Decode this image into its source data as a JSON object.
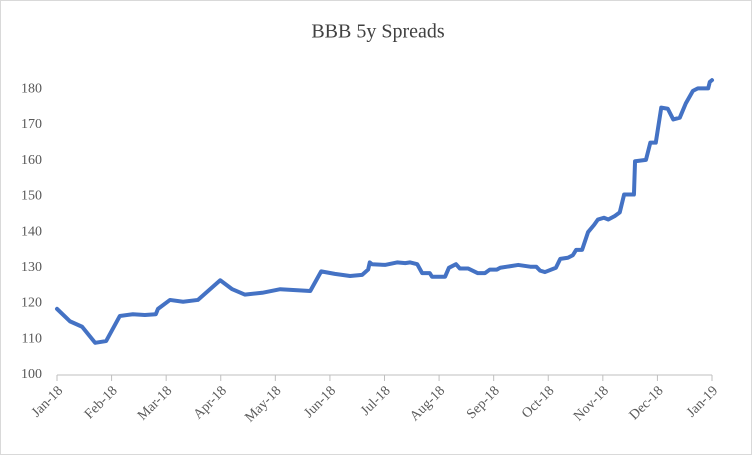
{
  "chart_data": {
    "type": "line",
    "title": "BBB 5y Spreads",
    "xlim": [
      0,
      12
    ],
    "xticks": [
      {
        "value": 0,
        "label": "Jan-18"
      },
      {
        "value": 1,
        "label": "Feb-18"
      },
      {
        "value": 2,
        "label": "Mar-18"
      },
      {
        "value": 3,
        "label": "Apr-18"
      },
      {
        "value": 4,
        "label": "May-18"
      },
      {
        "value": 5,
        "label": "Jun-18"
      },
      {
        "value": 6,
        "label": "Jul-18"
      },
      {
        "value": 7,
        "label": "Aug-18"
      },
      {
        "value": 8,
        "label": "Sep-18"
      },
      {
        "value": 9,
        "label": "Oct-18"
      },
      {
        "value": 10,
        "label": "Nov-18"
      },
      {
        "value": 11,
        "label": "Dec-18"
      },
      {
        "value": 12,
        "label": "Jan-19"
      }
    ],
    "ylim": [
      100,
      185
    ],
    "yticks": [
      100,
      110,
      120,
      130,
      140,
      150,
      160,
      170,
      180
    ],
    "grid": false,
    "series": [
      {
        "color": "#4472c4",
        "x": [
          0,
          0.24,
          0.46,
          0.7,
          0.9,
          1.15,
          1.39,
          1.61,
          1.81,
          1.85,
          2.07,
          2.31,
          2.58,
          2.99,
          3.21,
          3.44,
          3.76,
          4.09,
          4.64,
          4.84,
          5.09,
          5.37,
          5.59,
          5.7,
          5.73,
          5.77,
          6.01,
          6.23,
          6.38,
          6.47,
          6.6,
          6.69,
          6.83,
          6.87,
          7.11,
          7.18,
          7.31,
          7.38,
          7.53,
          7.71,
          7.84,
          7.93,
          8.06,
          8.12,
          8.45,
          8.67,
          8.78,
          8.85,
          8.94,
          9.14,
          9.22,
          9.36,
          9.45,
          9.51,
          9.62,
          9.73,
          9.84,
          9.91,
          10.02,
          10.1,
          10.22,
          10.31,
          10.39,
          10.57,
          10.59,
          10.79,
          10.87,
          10.97,
          11.07,
          11.19,
          11.29,
          11.41,
          11.52,
          11.65,
          11.74,
          11.93,
          11.96,
          12
        ],
        "values": [
          118.5,
          115,
          113.5,
          109,
          109.5,
          116.5,
          117,
          116.8,
          117,
          118.5,
          121,
          120.5,
          121,
          126.5,
          124,
          122.5,
          123,
          124,
          123.5,
          129,
          128.3,
          127.7,
          128,
          129.5,
          131.5,
          131,
          130.8,
          131.5,
          131.3,
          131.5,
          131,
          128.5,
          128.5,
          127.5,
          127.5,
          130,
          131,
          129.8,
          129.8,
          128.5,
          128.5,
          129.5,
          129.5,
          130,
          130.8,
          130.3,
          130.3,
          129.2,
          128.8,
          130,
          132.5,
          132.8,
          133.5,
          135,
          135,
          140,
          142,
          143.5,
          144,
          143.5,
          144.5,
          145.5,
          150.5,
          150.5,
          159.8,
          160.2,
          165,
          165,
          174.8,
          174.5,
          171.5,
          172,
          176,
          179.5,
          180.2,
          180.2,
          182,
          182.5
        ]
      }
    ]
  }
}
